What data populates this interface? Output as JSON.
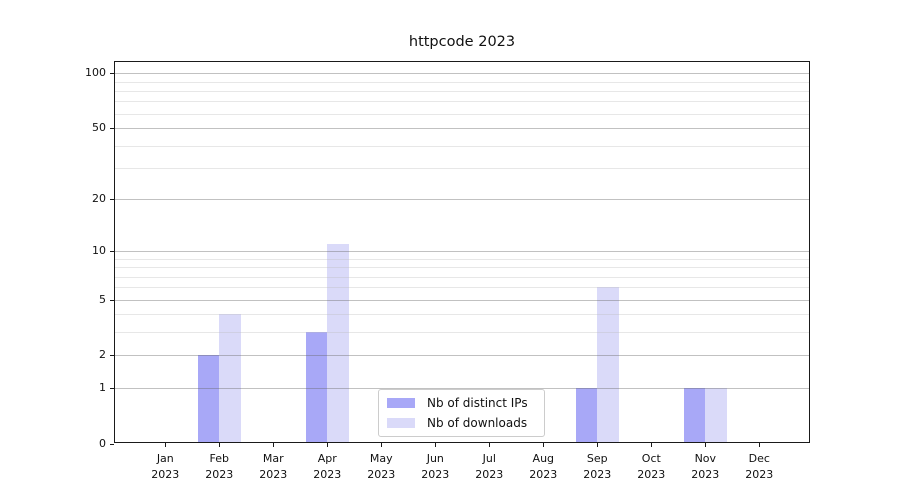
{
  "chart_data": {
    "type": "bar",
    "title": "httpcode 2023",
    "categories": [
      "Jan",
      "Feb",
      "Mar",
      "Apr",
      "May",
      "Jun",
      "Jul",
      "Aug",
      "Sep",
      "Oct",
      "Nov",
      "Dec"
    ],
    "category_year": "2023",
    "series": [
      {
        "name": "Nb of distinct IPs",
        "color": "#a8a8f7",
        "values": [
          0,
          2,
          0,
          3,
          0,
          0,
          0,
          0,
          1,
          0,
          1,
          0
        ]
      },
      {
        "name": "Nb of downloads",
        "color": "#dadaf9",
        "values": [
          0,
          4,
          0,
          11,
          0,
          0,
          0,
          0,
          6,
          0,
          1,
          0
        ]
      }
    ],
    "y_axis": {
      "scale": "log1p",
      "tick_labels": [
        0,
        1,
        2,
        5,
        10,
        20,
        50,
        100
      ],
      "minor_gridlines": [
        3,
        4,
        6,
        7,
        8,
        9,
        30,
        40,
        60,
        70,
        80,
        90
      ],
      "max_value": 112
    },
    "x_axis": {
      "tick_count": 12
    },
    "grid": true,
    "legend": {
      "position": "lower-center"
    },
    "colors": {
      "bar_dark": "#a8a8f7",
      "bar_light": "#dadaf9",
      "grid_major": "#c6c6c6",
      "grid_minor": "#e6e6e6",
      "spine": "#1a1a1a"
    }
  }
}
